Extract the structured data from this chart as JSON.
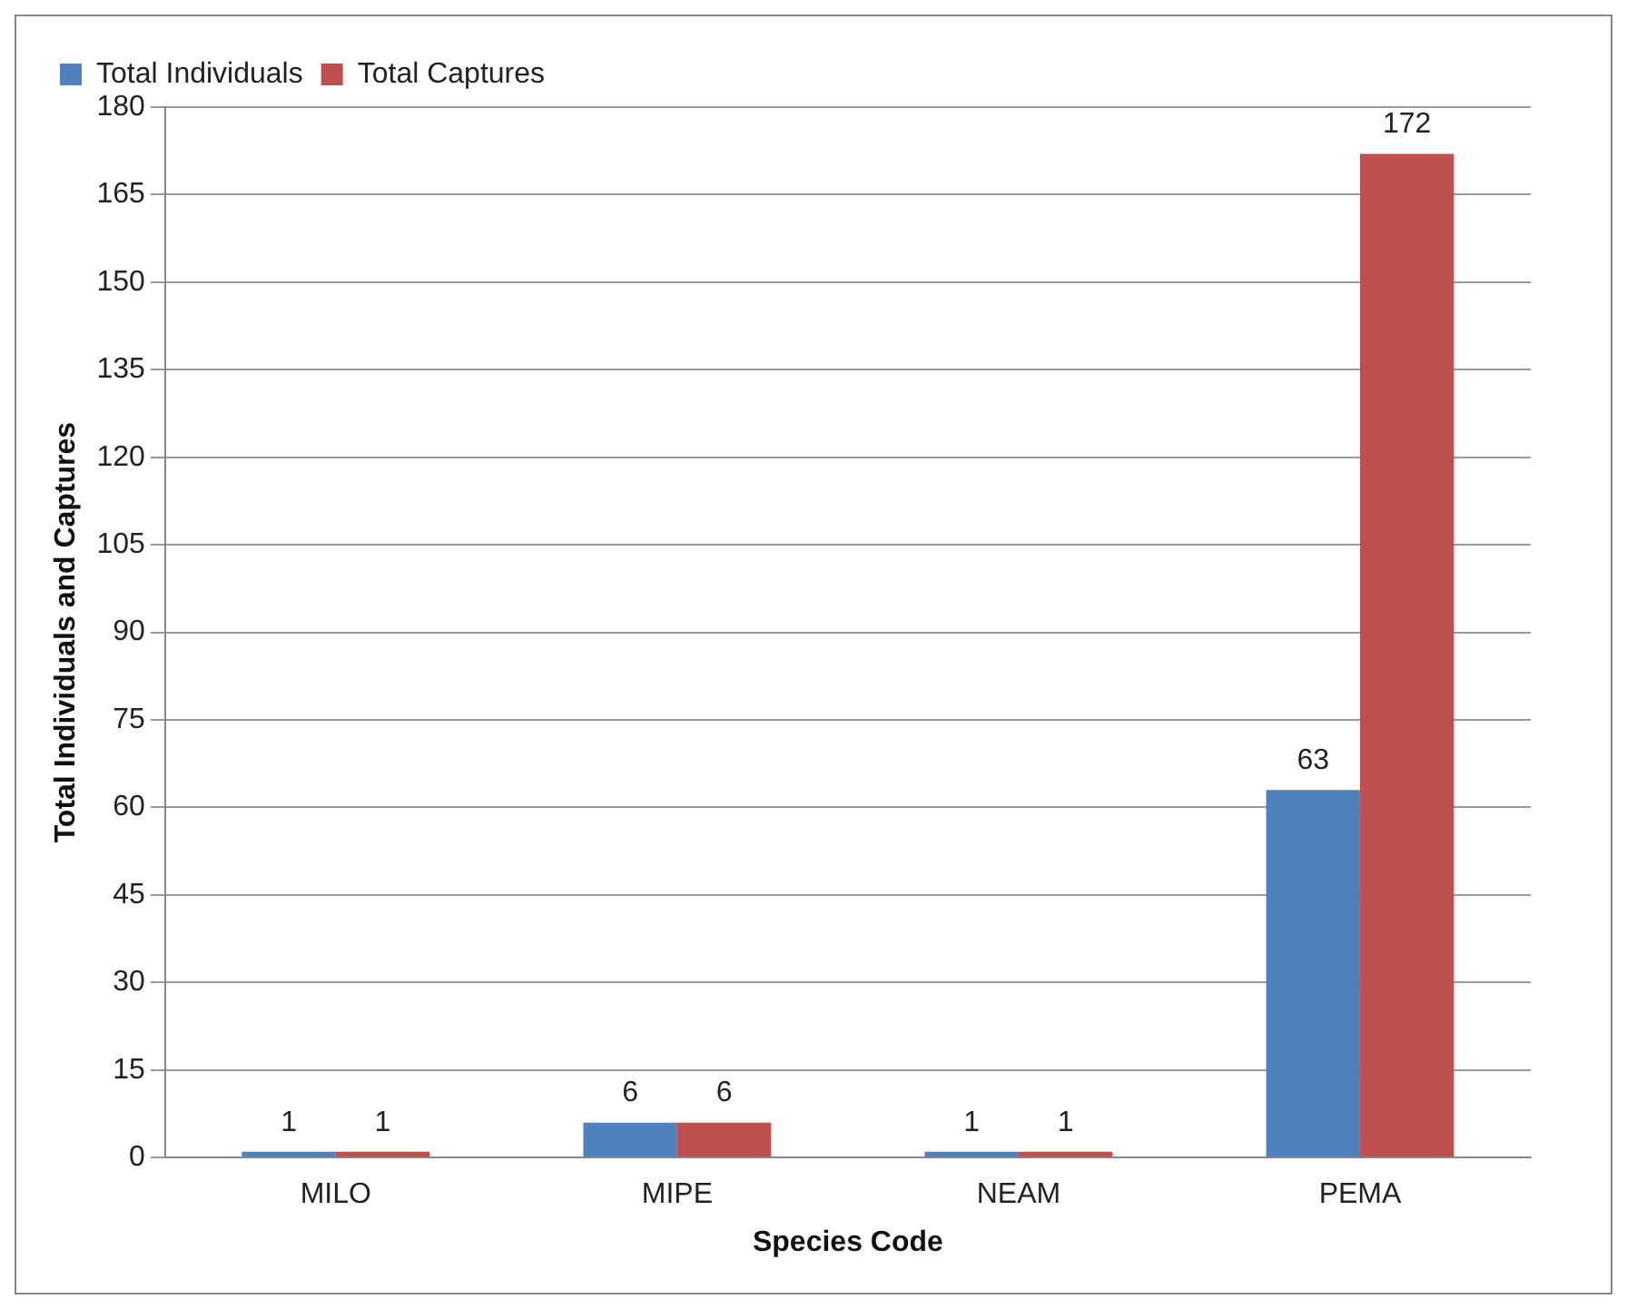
{
  "chart_data": {
    "type": "bar",
    "xlabel": "Species Code",
    "ylabel": "Total Individuals and Captures",
    "categories": [
      "MILO",
      "MIPE",
      "NEAM",
      "PEMA"
    ],
    "series": [
      {
        "name": "Total Individuals",
        "color": "#4f81bd",
        "values": [
          1,
          6,
          1,
          63
        ]
      },
      {
        "name": "Total Captures",
        "color": "#c0504d",
        "values": [
          1,
          6,
          1,
          172
        ]
      }
    ],
    "ylim": [
      0,
      180
    ],
    "yticks": [
      0,
      15,
      30,
      45,
      60,
      75,
      90,
      105,
      120,
      135,
      150,
      165,
      180
    ],
    "grid": "y",
    "legend": "top left",
    "data_labels": true
  }
}
